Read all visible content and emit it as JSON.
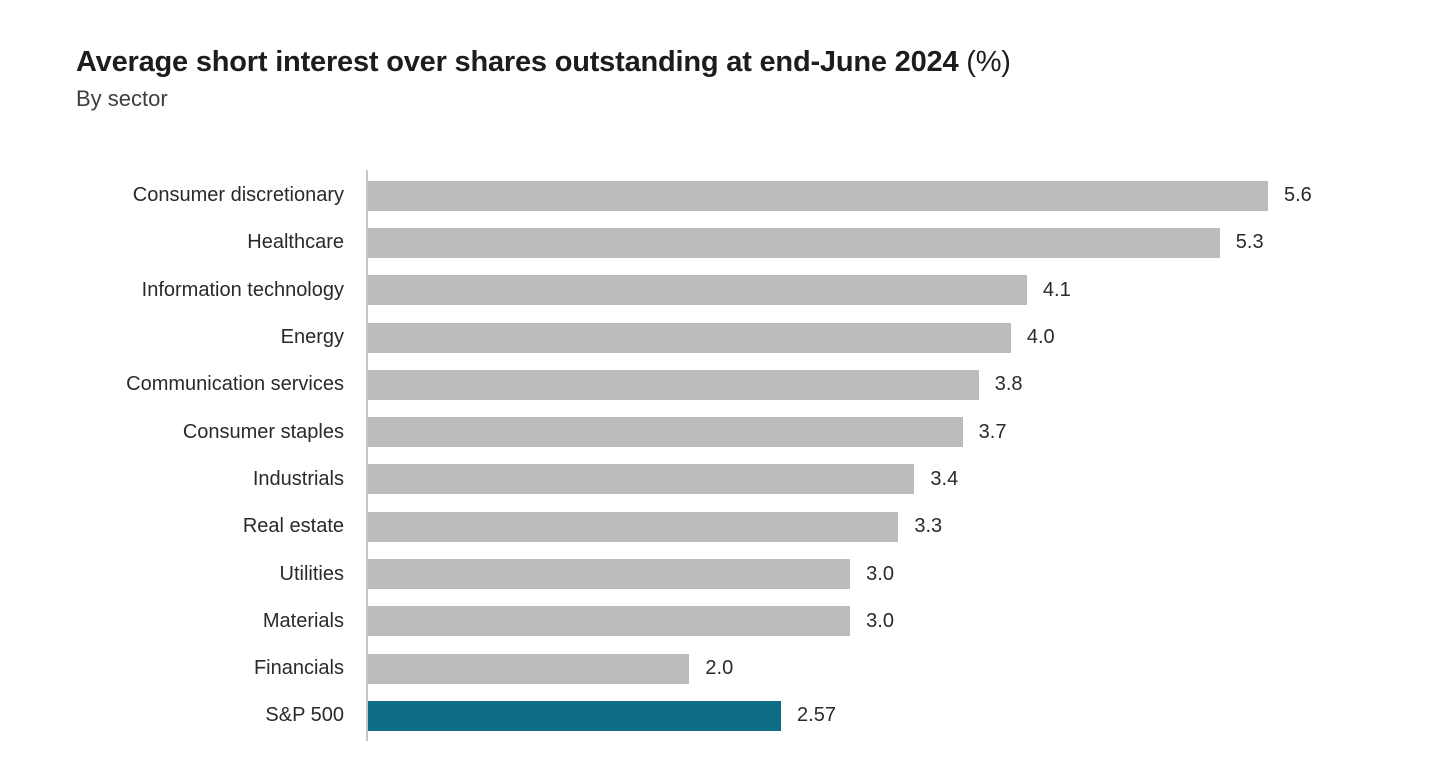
{
  "header": {
    "title": "Average short interest over shares outstanding at end-June 2024",
    "title_suffix": " (%)",
    "subtitle": "By sector"
  },
  "chart_data": {
    "type": "bar",
    "orientation": "horizontal",
    "title": "Average short interest over shares outstanding at end-June 2024 (%)",
    "subtitle": "By sector",
    "categories": [
      "Consumer discretionary",
      "Healthcare",
      "Information technology",
      "Energy",
      "Communication services",
      "Consumer staples",
      "Industrials",
      "Real estate",
      "Utilities",
      "Materials",
      "Financials",
      "S&P 500"
    ],
    "values": [
      5.6,
      5.3,
      4.1,
      4.0,
      3.8,
      3.7,
      3.4,
      3.3,
      3.0,
      3.0,
      2.0,
      2.57
    ],
    "value_labels": [
      "5.6",
      "5.3",
      "4.1",
      "4.0",
      "3.8",
      "3.7",
      "3.4",
      "3.3",
      "3.0",
      "3.0",
      "2.0",
      "2.57"
    ],
    "highlight_index": 11,
    "highlight_category": "S&P 500",
    "xlim": [
      0,
      6.2
    ],
    "xlabel": "",
    "ylabel": "",
    "grid": false,
    "legend": false,
    "data_labels": true,
    "colors": {
      "bar": "#bcbcbe",
      "highlight": "#0f6e87",
      "axis": "#c6c6c8",
      "text": "#2a2a2a"
    }
  }
}
